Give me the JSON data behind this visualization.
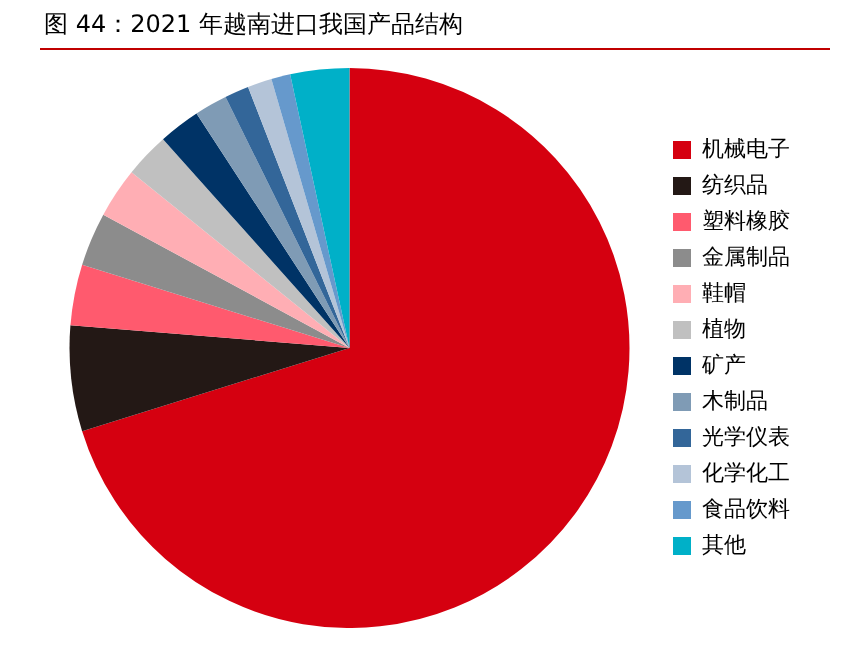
{
  "chart_data": {
    "type": "pie",
    "title": "图 44：2021 年越南进口我国产品结构",
    "categories": [
      "机械电子",
      "纺织品",
      "塑料橡胶",
      "金属制品",
      "鞋帽",
      "植物",
      "矿产",
      "木制品",
      "光学仪表",
      "化学化工",
      "食品饮料",
      "其他"
    ],
    "values": [
      70.2,
      6.1,
      3.5,
      3.1,
      2.9,
      2.6,
      2.4,
      1.9,
      1.4,
      1.4,
      1.1,
      3.4
    ],
    "colors": [
      "#d50010",
      "#231815",
      "#ff5a6e",
      "#8c8c8c",
      "#ffaeb4",
      "#c0c0c0",
      "#003366",
      "#7f9bb5",
      "#336699",
      "#b4c4d8",
      "#6699cc",
      "#00b0c8"
    ],
    "legend": "right"
  }
}
